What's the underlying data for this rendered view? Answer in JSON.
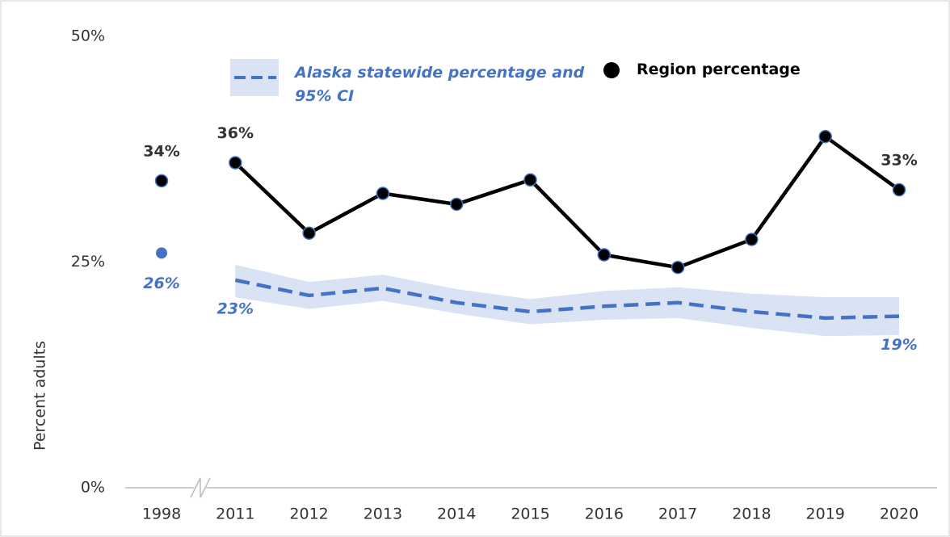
{
  "chart_data": {
    "type": "line",
    "y_axis_label": "Percent adults",
    "categories": [
      "1998",
      "2011",
      "2012",
      "2013",
      "2014",
      "2015",
      "2016",
      "2017",
      "2018",
      "2019",
      "2020"
    ],
    "ylim": [
      0,
      50
    ],
    "yticks": [
      {
        "value": 0,
        "label": "0%"
      },
      {
        "value": 25,
        "label": "25%"
      },
      {
        "value": 50,
        "label": "50%"
      }
    ],
    "grid": false,
    "series": [
      {
        "name": "Region percentage",
        "color": "#000000",
        "values": [
          34,
          36,
          28.2,
          32.6,
          31.4,
          34.1,
          25.8,
          24.4,
          27.5,
          38.9,
          33
        ],
        "value_labels": [
          "34%",
          "36%",
          null,
          null,
          null,
          null,
          null,
          null,
          null,
          null,
          "33%"
        ]
      },
      {
        "name": "Alaska statewide percentage and 95% CI",
        "color": "#4472c4",
        "band_color": "#dae3f3",
        "values": [
          26,
          23,
          21.3,
          22.1,
          20.5,
          19.5,
          20.1,
          20.5,
          19.5,
          18.8,
          19
        ],
        "ci_upper": [
          null,
          24.7,
          22.8,
          23.6,
          22.0,
          20.9,
          21.8,
          22.2,
          21.5,
          21.1,
          21.1
        ],
        "ci_lower": [
          null,
          21.1,
          19.8,
          20.7,
          19.3,
          18.1,
          18.6,
          18.8,
          17.7,
          16.8,
          16.9
        ],
        "value_labels": [
          "26%",
          "23%",
          null,
          null,
          null,
          null,
          null,
          null,
          null,
          null,
          "19%"
        ]
      }
    ]
  }
}
